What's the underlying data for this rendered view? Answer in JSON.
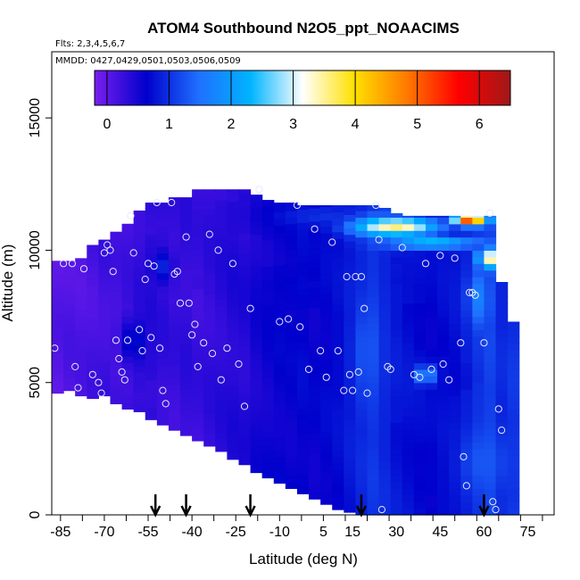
{
  "chart_data": {
    "type": "heatmap",
    "title": "ATOM4 Southbound N2O5_ppt_NOAACIMS",
    "subtitle_flights": "Flts: 2,3,4,5,6,7",
    "subtitle_dates": "MMDD: 0427,0429,0501,0503,0506,0509",
    "xlabel": "Latitude (deg N)",
    "ylabel": "Altitude (m)",
    "xlim": [
      -88,
      84
    ],
    "ylim": [
      0,
      17500
    ],
    "x_ticks": [
      -85,
      -70,
      -55,
      -40,
      -25,
      -10,
      5,
      15,
      30,
      45,
      60,
      75
    ],
    "x_tick_labels": [
      "-85",
      "-70",
      "-55",
      "-40",
      "-25",
      "-10",
      "5",
      "15",
      "30",
      "45",
      "60",
      "75"
    ],
    "y_ticks": [
      0,
      5000,
      10000,
      15000
    ],
    "y_tick_labels": [
      "0",
      "5000",
      "10000",
      "15000"
    ],
    "colorbar": {
      "min": -0.2,
      "max": 6.5,
      "ticks": [
        0,
        1,
        2,
        3,
        4,
        5,
        6
      ],
      "tick_labels": [
        "0",
        "1",
        "2",
        "3",
        "4",
        "5",
        "6"
      ],
      "colors": [
        "#7a1ff0",
        "#0000cc",
        "#1f6fff",
        "#00b4ff",
        "#ffffff",
        "#ffe000",
        "#ff7a00",
        "#ff0000",
        "#a01818"
      ]
    },
    "columns": [
      {
        "x": -86,
        "bottom": 4600,
        "top": 9600,
        "base": 0.05
      },
      {
        "x": -82,
        "bottom": 4700,
        "top": 9600,
        "base": 0.1
      },
      {
        "x": -78,
        "bottom": 4500,
        "top": 9700,
        "base": 0.1
      },
      {
        "x": -74,
        "bottom": 4400,
        "top": 10200,
        "base": 0.15
      },
      {
        "x": -70,
        "bottom": 4500,
        "top": 10400,
        "base": 0.2
      },
      {
        "x": -66,
        "bottom": 4200,
        "top": 10700,
        "base": 0.15
      },
      {
        "x": -62,
        "bottom": 4000,
        "top": 11000,
        "base": 0.2
      },
      {
        "x": -58,
        "bottom": 3900,
        "top": 11500,
        "base": 0.3
      },
      {
        "x": -54,
        "bottom": 3600,
        "top": 11800,
        "base": 0.35
      },
      {
        "x": -50,
        "bottom": 3400,
        "top": 11800,
        "base": 0.3
      },
      {
        "x": -46,
        "bottom": 3200,
        "top": 12000,
        "base": 0.25
      },
      {
        "x": -42,
        "bottom": 3000,
        "top": 12000,
        "base": 0.3
      },
      {
        "x": -38,
        "bottom": 2800,
        "top": 12300,
        "base": 0.25
      },
      {
        "x": -34,
        "bottom": 2600,
        "top": 12300,
        "base": 0.3
      },
      {
        "x": -30,
        "bottom": 2400,
        "top": 12300,
        "base": 0.35
      },
      {
        "x": -26,
        "bottom": 2100,
        "top": 12300,
        "base": 0.4
      },
      {
        "x": -22,
        "bottom": 1900,
        "top": 12300,
        "base": 0.4
      },
      {
        "x": -18,
        "bottom": 1600,
        "top": 12100,
        "base": 0.5
      },
      {
        "x": -14,
        "bottom": 1400,
        "top": 11900,
        "base": 0.55
      },
      {
        "x": -10,
        "bottom": 1200,
        "top": 11800,
        "base": 0.6
      },
      {
        "x": -6,
        "bottom": 1000,
        "top": 11800,
        "base": 0.6
      },
      {
        "x": -2,
        "bottom": 800,
        "top": 11700,
        "base": 0.65
      },
      {
        "x": 2,
        "bottom": 600,
        "top": 11700,
        "base": 0.6
      },
      {
        "x": 6,
        "bottom": 400,
        "top": 11700,
        "base": 0.65
      },
      {
        "x": 10,
        "bottom": 200,
        "top": 11700,
        "base": 0.7
      },
      {
        "x": 14,
        "bottom": 100,
        "top": 11700,
        "base": 0.8
      },
      {
        "x": 18,
        "bottom": 0,
        "top": 11700,
        "base": 0.9
      },
      {
        "x": 22,
        "bottom": 0,
        "top": 11700,
        "base": 1.0
      },
      {
        "x": 26,
        "bottom": 0,
        "top": 11600,
        "base": 0.9
      },
      {
        "x": 30,
        "bottom": 0,
        "top": 11400,
        "base": 0.8
      },
      {
        "x": 34,
        "bottom": 0,
        "top": 11300,
        "base": 0.75
      },
      {
        "x": 38,
        "bottom": 0,
        "top": 11300,
        "base": 0.7
      },
      {
        "x": 42,
        "bottom": 0,
        "top": 11300,
        "base": 0.65
      },
      {
        "x": 46,
        "bottom": 0,
        "top": 11300,
        "base": 0.7
      },
      {
        "x": 50,
        "bottom": 0,
        "top": 11300,
        "base": 0.75
      },
      {
        "x": 54,
        "bottom": 0,
        "top": 11300,
        "base": 0.85
      },
      {
        "x": 58,
        "bottom": 0,
        "top": 11300,
        "base": 1.0
      },
      {
        "x": 62,
        "bottom": 0,
        "top": 11300,
        "base": 1.1
      },
      {
        "x": 66,
        "bottom": 0,
        "top": 8800,
        "base": 0.9
      },
      {
        "x": 70,
        "bottom": 0,
        "top": 7300,
        "base": 1.0
      }
    ],
    "features": [
      {
        "x": 30,
        "y": 10900,
        "width": 36,
        "height": 900,
        "peak": 3.6
      },
      {
        "x": 55,
        "y": 11200,
        "width": 14,
        "height": 600,
        "peak": 5.6
      },
      {
        "x": 42,
        "y": 10300,
        "width": 38,
        "height": 600,
        "peak": 2.5
      },
      {
        "x": 62,
        "y": 9700,
        "width": 10,
        "height": 900,
        "peak": 3.5
      },
      {
        "x": 58,
        "y": 8200,
        "width": 9,
        "height": 2600,
        "peak": 1.7
      },
      {
        "x": 20,
        "y": 6200,
        "width": 12,
        "height": 4800,
        "peak": 1.3
      },
      {
        "x": 40,
        "y": 5300,
        "width": 8,
        "height": 900,
        "peak": 2.0
      },
      {
        "x": 34,
        "y": 11700,
        "width": 16,
        "height": 500,
        "peak": 2.2
      },
      {
        "x": -52,
        "y": 6800,
        "width": 3,
        "height": 600,
        "peak": 1.5
      },
      {
        "x": -60,
        "y": 6600,
        "width": 10,
        "height": 2000,
        "peak": 0.8
      },
      {
        "x": -50,
        "y": 9400,
        "width": 8,
        "height": 1400,
        "peak": 0.9
      },
      {
        "x": 5,
        "y": 11300,
        "width": 40,
        "height": 1000,
        "peak": 1.0
      },
      {
        "x": 10,
        "y": 8700,
        "width": 50,
        "height": 900,
        "peak": 0.7
      },
      {
        "x": 60,
        "y": 2000,
        "width": 20,
        "height": 3000,
        "peak": 1.3
      }
    ],
    "sample_points": [
      [
        -87,
        6300
      ],
      [
        -84,
        9500
      ],
      [
        -81,
        9500
      ],
      [
        -80,
        5600
      ],
      [
        -79,
        4800
      ],
      [
        -77,
        9300
      ],
      [
        -74,
        5300
      ],
      [
        -72,
        5000
      ],
      [
        -71,
        4600
      ],
      [
        -70,
        9900
      ],
      [
        -69,
        10200
      ],
      [
        -68,
        10000
      ],
      [
        -67,
        9200
      ],
      [
        -66,
        6600
      ],
      [
        -65,
        5900
      ],
      [
        -64,
        5400
      ],
      [
        -63,
        5100
      ],
      [
        -62,
        6600
      ],
      [
        -61,
        11300
      ],
      [
        -60,
        9900
      ],
      [
        -58,
        7000
      ],
      [
        -57,
        6200
      ],
      [
        -56,
        8900
      ],
      [
        -55,
        9500
      ],
      [
        -54,
        6700
      ],
      [
        -53,
        9400
      ],
      [
        -52,
        11800
      ],
      [
        -51,
        6300
      ],
      [
        -50,
        4700
      ],
      [
        -49,
        4200
      ],
      [
        -47,
        11800
      ],
      [
        -46,
        9100
      ],
      [
        -45,
        9200
      ],
      [
        -44,
        8000
      ],
      [
        -42,
        10500
      ],
      [
        -41,
        8000
      ],
      [
        -40,
        6800
      ],
      [
        -39,
        7200
      ],
      [
        -38,
        5600
      ],
      [
        -36,
        6500
      ],
      [
        -34,
        10600
      ],
      [
        -33,
        6100
      ],
      [
        -31,
        10000
      ],
      [
        -30,
        5100
      ],
      [
        -28,
        6300
      ],
      [
        -26,
        9500
      ],
      [
        -24,
        5700
      ],
      [
        -22,
        4100
      ],
      [
        -20,
        7800
      ],
      [
        -17,
        12300
      ],
      [
        -10,
        7300
      ],
      [
        -7,
        7400
      ],
      [
        -4,
        11700
      ],
      [
        -3,
        7100
      ],
      [
        0,
        5500
      ],
      [
        2,
        10800
      ],
      [
        4,
        6200
      ],
      [
        6,
        5200
      ],
      [
        8,
        10300
      ],
      [
        10,
        6200
      ],
      [
        12,
        4700
      ],
      [
        13,
        9000
      ],
      [
        14,
        5300
      ],
      [
        15,
        4700
      ],
      [
        16,
        9000
      ],
      [
        17,
        5400
      ],
      [
        18,
        9000
      ],
      [
        19,
        7800
      ],
      [
        20,
        4600
      ],
      [
        23,
        11700
      ],
      [
        24,
        10400
      ],
      [
        25,
        200
      ],
      [
        27,
        5600
      ],
      [
        28,
        5500
      ],
      [
        32,
        10100
      ],
      [
        36,
        5300
      ],
      [
        38,
        5200
      ],
      [
        40,
        9500
      ],
      [
        42,
        5500
      ],
      [
        45,
        9800
      ],
      [
        46,
        5700
      ],
      [
        48,
        5100
      ],
      [
        50,
        9700
      ],
      [
        52,
        6500
      ],
      [
        53,
        2200
      ],
      [
        54,
        1100
      ],
      [
        55,
        8400
      ],
      [
        56,
        8400
      ],
      [
        57,
        8300
      ],
      [
        60,
        6500
      ],
      [
        62,
        11400
      ],
      [
        63,
        500
      ],
      [
        65,
        4000
      ],
      [
        66,
        3200
      ],
      [
        64,
        200
      ]
    ],
    "arrow_latitudes": [
      -52.5,
      -42,
      -20,
      18,
      60
    ]
  }
}
